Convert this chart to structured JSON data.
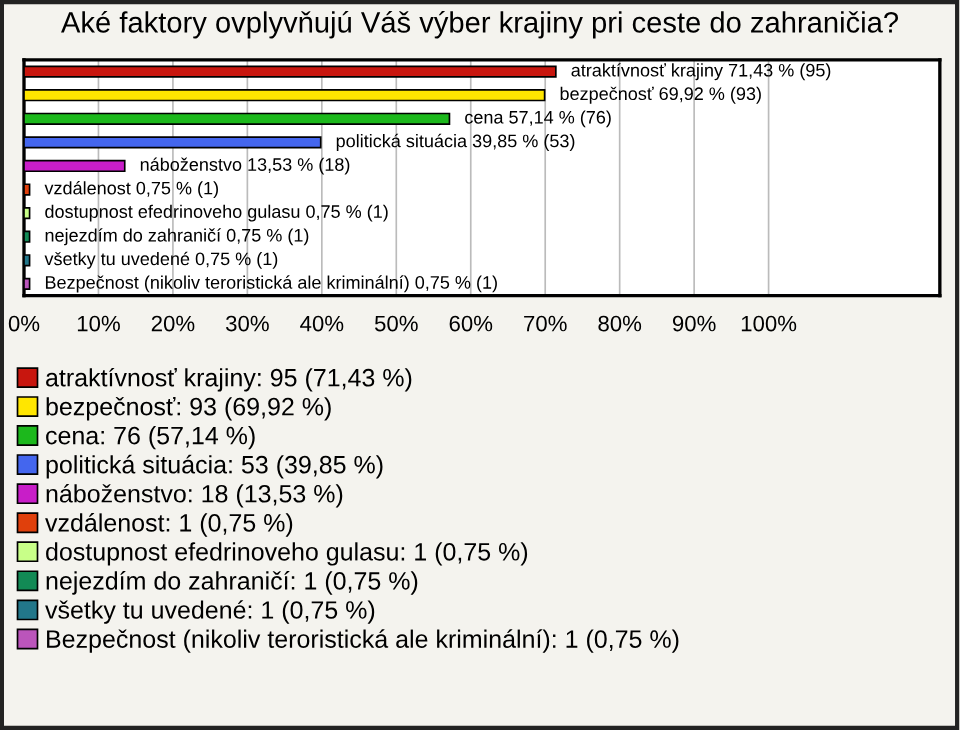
{
  "chart_data": {
    "type": "bar",
    "orientation": "horizontal",
    "title": "Aké faktory ovplyvňujú Váš výber krajiny pri ceste do zahraničia?",
    "categories": [
      null,
      null,
      null,
      null,
      null,
      null,
      null,
      null,
      null,
      null
    ],
    "series": [
      {
        "name": "atraktívnosť krajiny: 95 (71,43 %)",
        "color": "#c8160e",
        "values": [
          71.43,
          null,
          null,
          null,
          null,
          null,
          null,
          null,
          null,
          null
        ],
        "value_labels": [
          "atraktívnosť krajiny 71,43 % (95)",
          null,
          null,
          null,
          null,
          null,
          null,
          null,
          null,
          null
        ]
      },
      {
        "name": "bezpečnosť: 93 (69,92 %)",
        "color": "#ffe600",
        "values": [
          null,
          69.92,
          null,
          null,
          null,
          null,
          null,
          null,
          null,
          null
        ],
        "value_labels": [
          null,
          "bezpečnosť 69,92 % (93)",
          null,
          null,
          null,
          null,
          null,
          null,
          null,
          null
        ]
      },
      {
        "name": "cena: 76 (57,14 %)",
        "color": "#1cb81c",
        "values": [
          null,
          null,
          57.14,
          null,
          null,
          null,
          null,
          null,
          null,
          null
        ],
        "value_labels": [
          null,
          null,
          "cena 57,14 % (76)",
          null,
          null,
          null,
          null,
          null,
          null,
          null
        ]
      },
      {
        "name": "politická situácia: 53 (39,85 %)",
        "color": "#4466ee",
        "values": [
          null,
          null,
          null,
          39.85,
          null,
          null,
          null,
          null,
          null,
          null
        ],
        "value_labels": [
          null,
          null,
          null,
          "politická situácia 39,85 % (53)",
          null,
          null,
          null,
          null,
          null,
          null
        ]
      },
      {
        "name": "náboženstvo: 18 (13,53 %)",
        "color": "#c81ec8",
        "values": [
          null,
          null,
          null,
          null,
          13.53,
          null,
          null,
          null,
          null,
          null
        ],
        "value_labels": [
          null,
          null,
          null,
          null,
          "náboženstvo 13,53 % (18)",
          null,
          null,
          null,
          null,
          null
        ]
      },
      {
        "name": "vzdálenost: 1 (0,75 %)",
        "color": "#e0400c",
        "values": [
          null,
          null,
          null,
          null,
          null,
          0.75,
          null,
          null,
          null,
          null
        ],
        "value_labels": [
          null,
          null,
          null,
          null,
          null,
          "vzdálenost 0,75 % (1)",
          null,
          null,
          null,
          null
        ]
      },
      {
        "name": "dostupnost efedrinoveho gulasu: 1 (0,75 %)",
        "color": "#c8ff88",
        "values": [
          null,
          null,
          null,
          null,
          null,
          null,
          0.75,
          null,
          null,
          null
        ],
        "value_labels": [
          null,
          null,
          null,
          null,
          null,
          null,
          "dostupnost efedrinoveho gulasu 0,75 % (1)",
          null,
          null,
          null
        ]
      },
      {
        "name": "nejezdím do zahraničí: 1 (0,75 %)",
        "color": "#128a55",
        "values": [
          null,
          null,
          null,
          null,
          null,
          null,
          null,
          0.75,
          null,
          null
        ],
        "value_labels": [
          null,
          null,
          null,
          null,
          null,
          null,
          null,
          "nejezdím do zahraničí 0,75 % (1)",
          null,
          null
        ]
      },
      {
        "name": "všetky tu uvedené: 1 (0,75 %)",
        "color": "#22778a",
        "values": [
          null,
          null,
          null,
          null,
          null,
          null,
          null,
          null,
          0.75,
          null
        ],
        "value_labels": [
          null,
          null,
          null,
          null,
          null,
          null,
          null,
          null,
          "všetky tu uvedené 0,75 % (1)",
          null
        ]
      },
      {
        "name": "Bezpečnost (nikoliv teroristická ale kriminální): 1 (0,75 %)",
        "color": "#bb55bb",
        "values": [
          null,
          null,
          null,
          null,
          null,
          null,
          null,
          null,
          null,
          0.75
        ],
        "value_labels": [
          null,
          null,
          null,
          null,
          null,
          null,
          null,
          null,
          null,
          "Bezpečnost (nikoliv teroristická ale kriminální) 0,75 % (1)"
        ]
      }
    ],
    "xlim": [
      0,
      123
    ],
    "xticks": [
      {
        "value": 0,
        "label": "0%"
      },
      {
        "value": 10,
        "label": "10%"
      },
      {
        "value": 20,
        "label": "20%"
      },
      {
        "value": 30,
        "label": "30%"
      },
      {
        "value": 40,
        "label": "40%"
      },
      {
        "value": 50,
        "label": "50%"
      },
      {
        "value": 60,
        "label": "60%"
      },
      {
        "value": 70,
        "label": "70%"
      },
      {
        "value": 80,
        "label": "80%"
      },
      {
        "value": 90,
        "label": "90%"
      },
      {
        "value": 100,
        "label": "100%"
      }
    ],
    "grid": "x",
    "legend": "bottom",
    "tick_labels": "x"
  }
}
